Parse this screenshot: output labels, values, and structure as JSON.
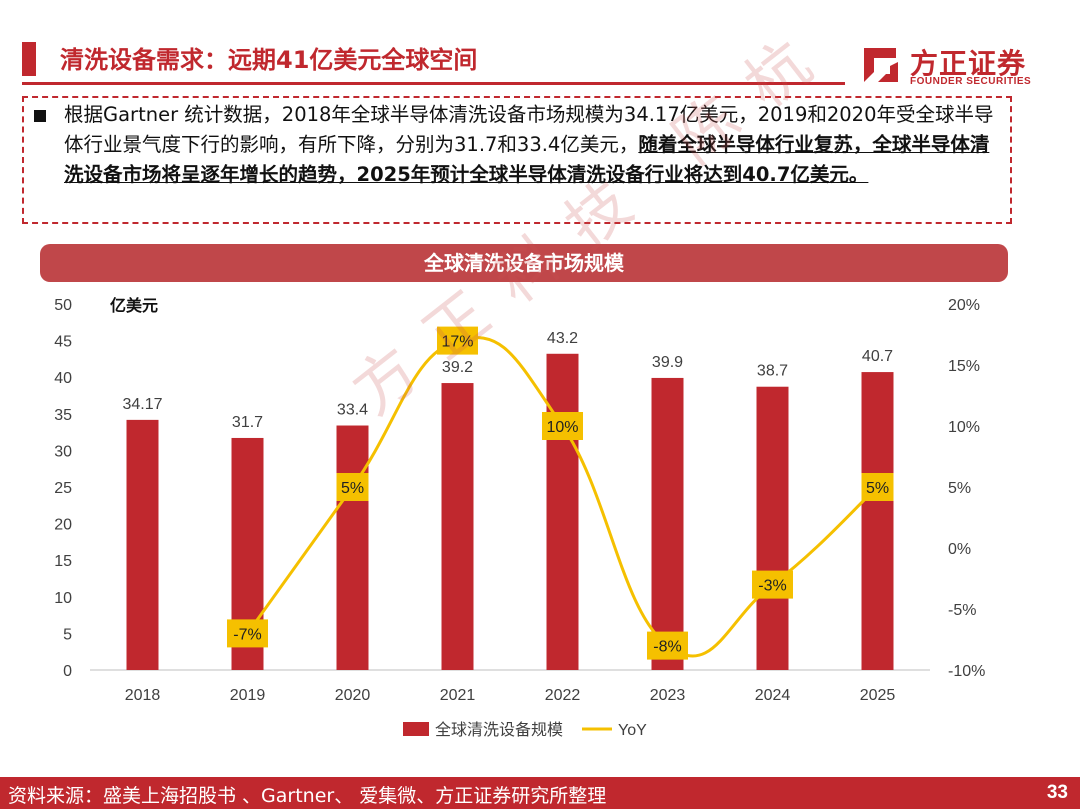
{
  "header": {
    "title": "清洗设备需求：远期41亿美元全球空间",
    "logo_cn": "方正证券",
    "logo_en": "FOUNDER SECURITIES"
  },
  "note": {
    "text_plain": "根据Gartner 统计数据，2018年全球半导体清洗设备市场规模为34.17亿美元，2019和2020年受全球半导体行业景气度下行的影响，有所下降，分别为31.7和33.4亿美元，",
    "text_bold": "随着全球半导体行业复苏，全球半导体清洗设备市场将呈逐年增长的趋势，2025年预计全球半导体清洗设备行业将达到40.7亿美元。"
  },
  "chart_data": {
    "type": "bar",
    "title": "全球清洗设备市场规模",
    "categories": [
      "2018",
      "2019",
      "2020",
      "2021",
      "2022",
      "2023",
      "2024",
      "2025"
    ],
    "left_axis_unit": "亿美元",
    "ylim_left": [
      0,
      50
    ],
    "yticks_left": [
      "0",
      "5",
      "10",
      "15",
      "20",
      "25",
      "30",
      "35",
      "40",
      "45",
      "50"
    ],
    "ylim_right": [
      -10,
      20
    ],
    "yticks_right": [
      "-10%",
      "-5%",
      "0%",
      "5%",
      "10%",
      "15%",
      "20%"
    ],
    "series": [
      {
        "name": "全球清洗设备规模",
        "kind": "bar",
        "color": "#c0282e",
        "values": [
          34.17,
          31.7,
          33.4,
          39.2,
          43.2,
          39.9,
          38.7,
          40.7
        ],
        "labels": [
          "34.17",
          "31.7",
          "33.4",
          "39.2",
          "43.2",
          "39.9",
          "38.7",
          "40.7"
        ]
      },
      {
        "name": "YoY",
        "kind": "line",
        "axis": "right",
        "color": "#f5c000",
        "x": [
          "2019",
          "2020",
          "2021",
          "2022",
          "2023",
          "2024",
          "2025"
        ],
        "values": [
          -7,
          5,
          17,
          10,
          -8,
          -3,
          5
        ],
        "labels": [
          "-7%",
          "5%",
          "17%",
          "10%",
          "-8%",
          "-3%",
          "5%"
        ]
      }
    ],
    "legend": "bottom"
  },
  "watermark": "方正科技 陈杭",
  "footer": {
    "source": "资料来源：盛美上海招股书 、Gartner、 爱集微、方正证券研究所整理",
    "page": "33"
  },
  "colors": {
    "brand": "#c0282e",
    "line": "#f5c000",
    "label_box": "#f5c000"
  }
}
